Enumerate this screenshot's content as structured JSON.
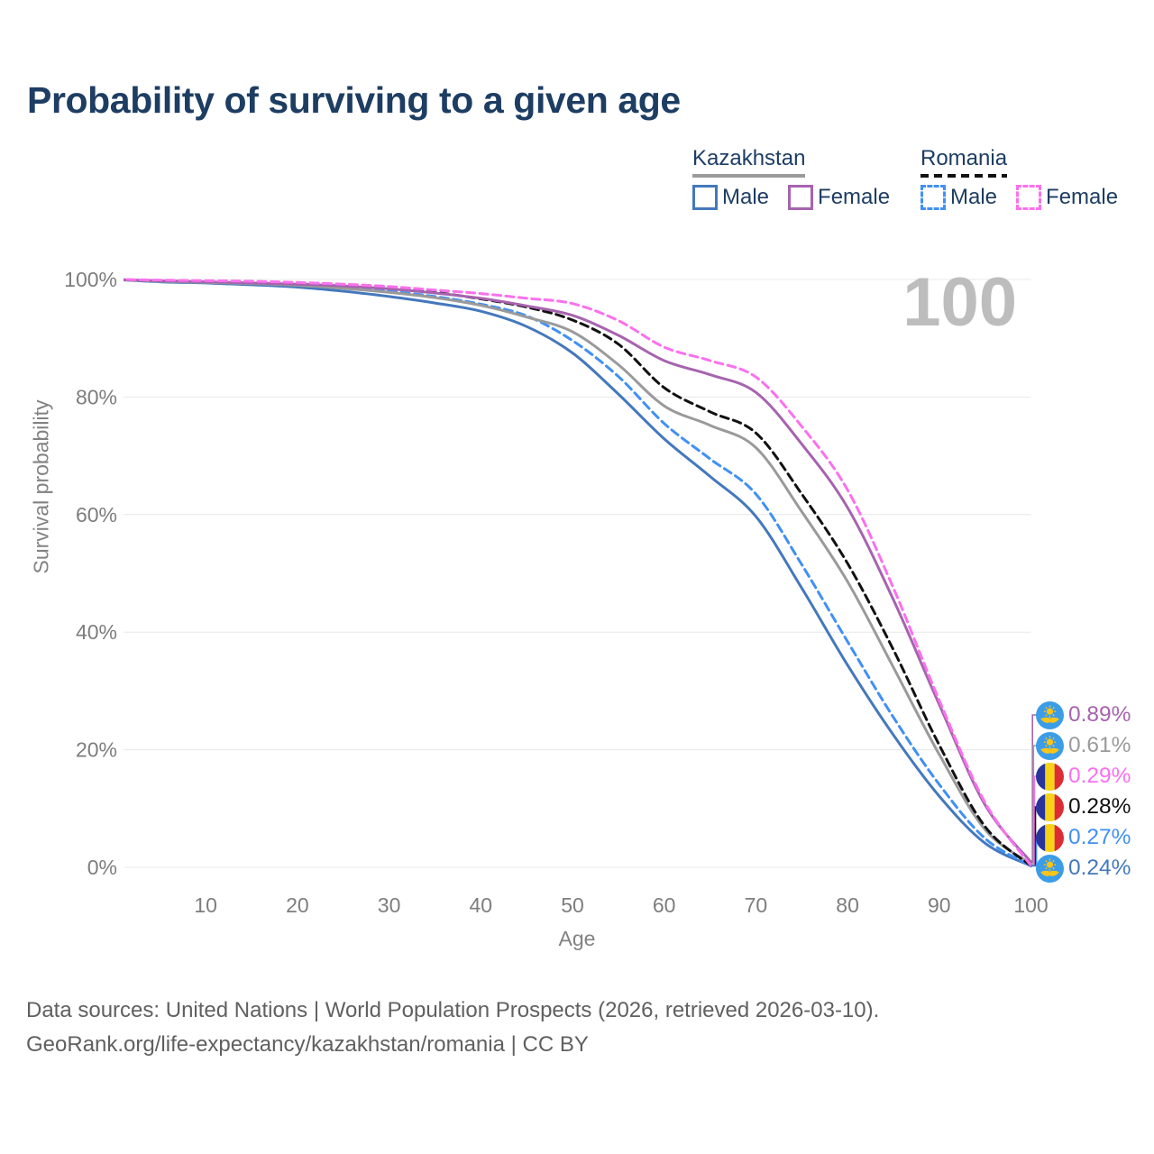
{
  "title": "Probability of surviving to a given age",
  "watermark": "100",
  "legend": {
    "groups": [
      {
        "country": "Kazakhstan",
        "line_style": "solid",
        "line_color": "#9a9a9a",
        "items": [
          {
            "label": "Male",
            "color": "#4478bd",
            "style": "solid"
          },
          {
            "label": "Female",
            "color": "#a763ae",
            "style": "solid"
          }
        ]
      },
      {
        "country": "Romania",
        "line_style": "dashed",
        "line_color": "#111111",
        "items": [
          {
            "label": "Male",
            "color": "#4090f5",
            "style": "dashed"
          },
          {
            "label": "Female",
            "color": "#fb70ee",
            "style": "dashed"
          }
        ]
      }
    ]
  },
  "chart_data": {
    "type": "line",
    "title": "Probability of surviving to a given age",
    "xlabel": "Age",
    "ylabel": "Survival probability",
    "xlim": [
      0,
      100
    ],
    "ylim": [
      0,
      100
    ],
    "grid": "horizontal-only",
    "x_ticks": [
      10,
      20,
      30,
      40,
      50,
      60,
      70,
      80,
      90,
      100
    ],
    "y_ticks": [
      100,
      80,
      60,
      40,
      20,
      0
    ],
    "y_tick_suffix": "%",
    "ages": [
      0,
      5,
      10,
      15,
      20,
      25,
      30,
      35,
      40,
      45,
      50,
      55,
      60,
      65,
      70,
      75,
      80,
      85,
      90,
      95,
      100
    ],
    "series": [
      {
        "key": "kz_male",
        "name": "Kazakhstan Male",
        "country": "kz",
        "dashed": false,
        "color": "#4478bd",
        "values": [
          100,
          99.6,
          99.4,
          99.1,
          98.7,
          98.0,
          97.1,
          96.0,
          94.6,
          92.0,
          87.5,
          80.5,
          72.9,
          66.5,
          59.7,
          47.5,
          34.4,
          22.5,
          12.1,
          4.1,
          0.24
        ]
      },
      {
        "key": "ro_male",
        "name": "Romania Male",
        "country": "ro",
        "dashed": true,
        "color": "#4090f5",
        "values": [
          100,
          99.7,
          99.6,
          99.4,
          99.1,
          98.6,
          98.0,
          97.1,
          95.8,
          93.8,
          89.6,
          83.5,
          75.5,
          69.5,
          63.5,
          51.5,
          38.4,
          25.5,
          14.1,
          4.9,
          0.27
        ]
      },
      {
        "key": "kz_total",
        "name": "Kazakhstan Both sexes",
        "country": "kz",
        "dashed": false,
        "color": "#9a9a9a",
        "values": [
          100,
          99.7,
          99.5,
          99.3,
          99.0,
          98.5,
          97.8,
          96.9,
          95.6,
          93.6,
          91.1,
          85.5,
          78.5,
          75.2,
          71.4,
          60.5,
          48.6,
          34.0,
          19.2,
          6.4,
          0.61
        ]
      },
      {
        "key": "ro_total",
        "name": "Romania Both sexes",
        "country": "ro",
        "dashed": true,
        "color": "#111111",
        "values": [
          100,
          99.8,
          99.7,
          99.5,
          99.3,
          99.0,
          98.5,
          97.8,
          96.7,
          95.3,
          93.1,
          89.0,
          81.6,
          77.5,
          73.9,
          63.5,
          51.7,
          37.0,
          20.8,
          6.9,
          0.28
        ]
      },
      {
        "key": "kz_female",
        "name": "Kazakhstan Female",
        "country": "kz",
        "dashed": false,
        "color": "#a763ae",
        "values": [
          100,
          99.8,
          99.6,
          99.4,
          99.2,
          98.9,
          98.4,
          97.7,
          96.8,
          95.5,
          93.9,
          90.5,
          86.2,
          83.8,
          80.8,
          72.0,
          61.2,
          45.5,
          27.7,
          10.6,
          0.89
        ]
      },
      {
        "key": "ro_female",
        "name": "Romania Female",
        "country": "ro",
        "dashed": true,
        "color": "#fb70ee",
        "values": [
          100,
          99.9,
          99.8,
          99.7,
          99.5,
          99.2,
          98.8,
          98.2,
          97.6,
          96.8,
          95.9,
          93.0,
          88.5,
          86.2,
          83.4,
          75.0,
          64.2,
          47.5,
          28.4,
          11.0,
          0.29
        ]
      }
    ],
    "end_labels": [
      {
        "label": "0.89%",
        "series": "kz_female",
        "country": "kz",
        "color": "#a763ae"
      },
      {
        "label": "0.61%",
        "series": "kz_total",
        "country": "kz",
        "color": "#9a9a9a"
      },
      {
        "label": "0.29%",
        "series": "ro_female",
        "country": "ro",
        "color": "#fb70ee"
      },
      {
        "label": "0.28%",
        "series": "ro_total",
        "country": "ro",
        "color": "#111111"
      },
      {
        "label": "0.27%",
        "series": "ro_male",
        "country": "ro",
        "color": "#4090f5"
      },
      {
        "label": "0.24%",
        "series": "kz_male",
        "country": "kz",
        "color": "#4478bd"
      }
    ]
  },
  "footer": {
    "line1": "Data sources: United Nations | World Population Prospects (2026, retrieved 2026-03-10).",
    "line2": "GeoRank.org/life-expectancy/kazakhstan/romania | CC BY"
  }
}
